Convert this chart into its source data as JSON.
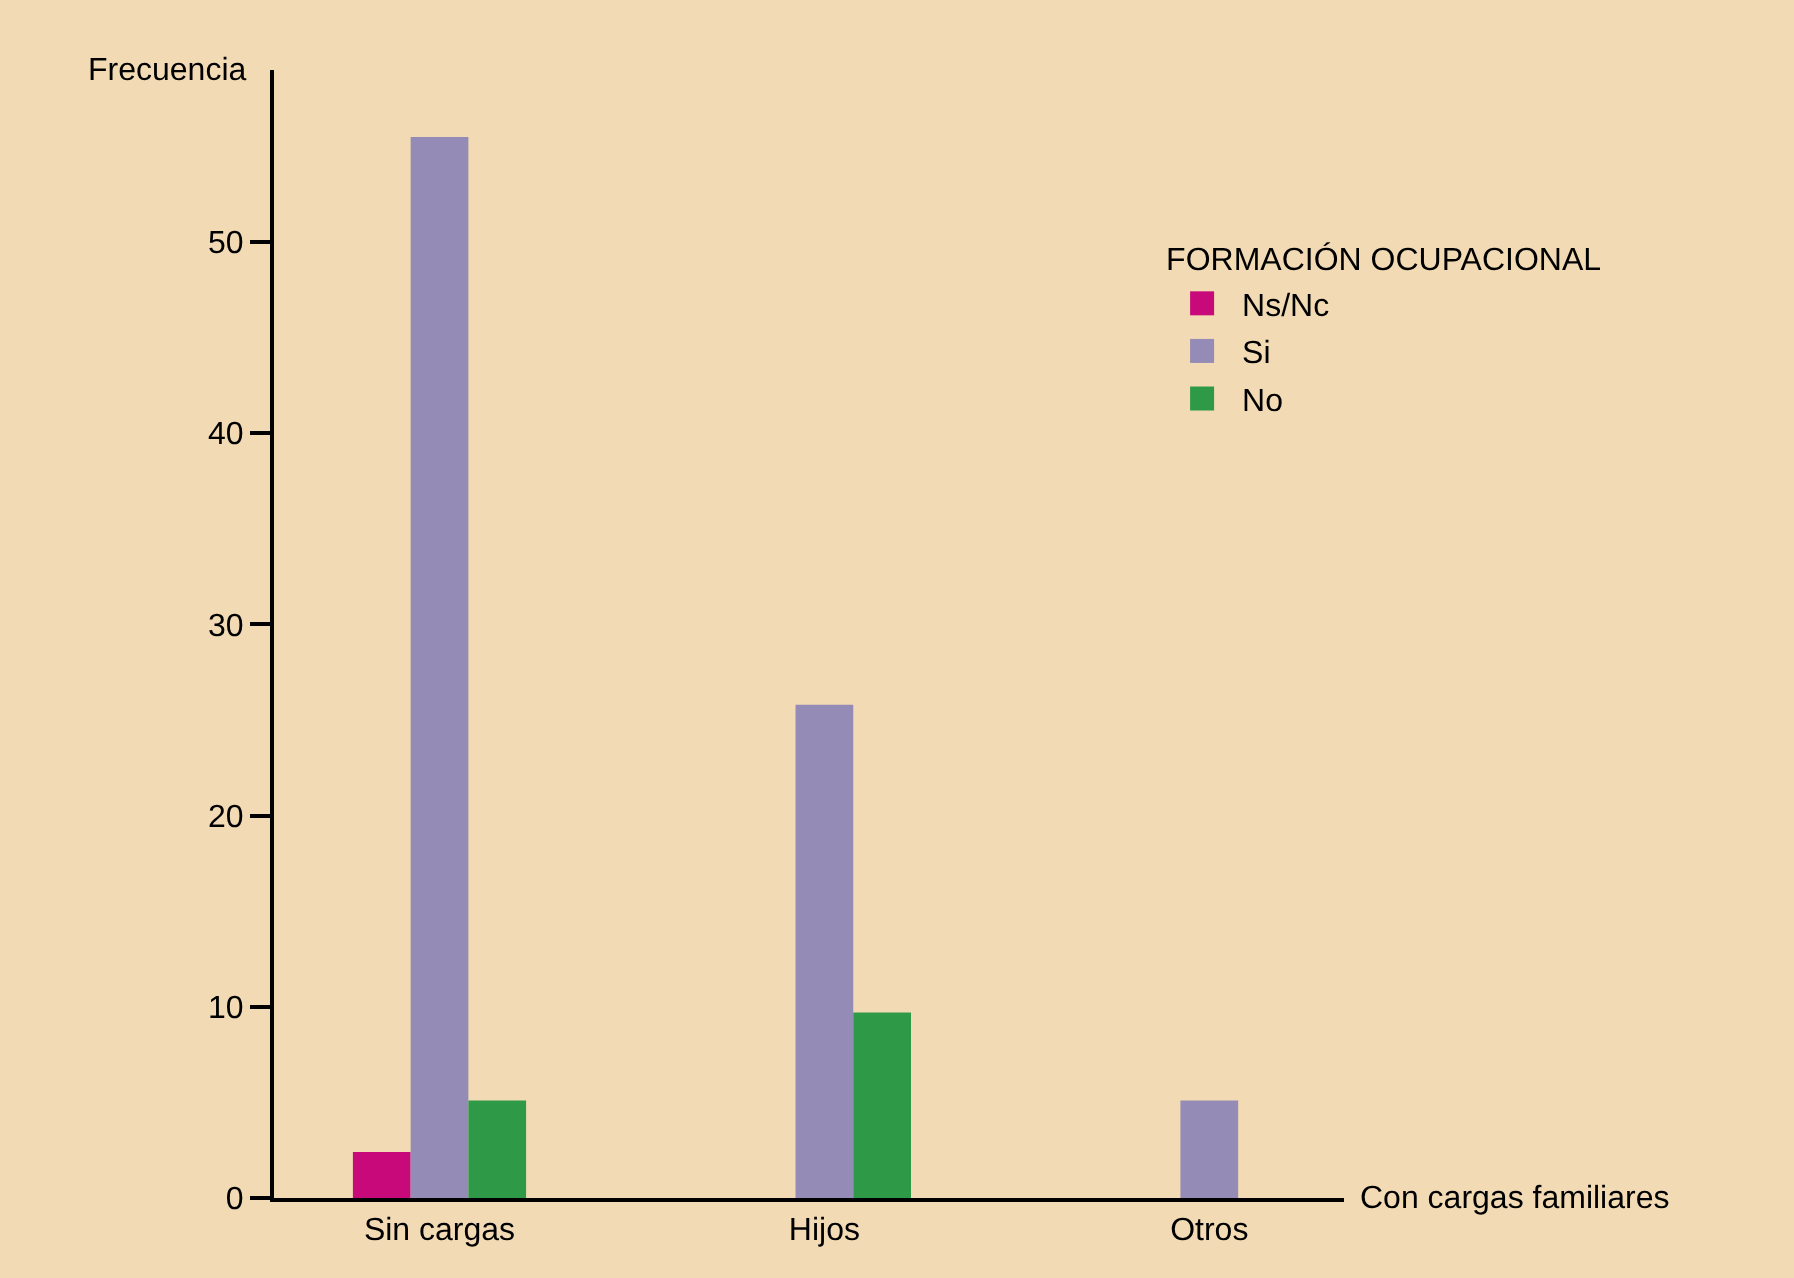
{
  "chart_data": {
    "type": "bar",
    "xlabel": "Con cargas familiares",
    "ylabel": "Frecuencia",
    "legend_title": "FORMACIÓN OCUPACIONAL",
    "categories": [
      "Sin cargas",
      "Hijos",
      "Otros"
    ],
    "series": [
      {
        "name": "Ns/Nc",
        "color": "#c8097a",
        "values": [
          2.4,
          null,
          null
        ]
      },
      {
        "name": "Si",
        "color": "#948bb6",
        "values": [
          55.5,
          25.8,
          5.1
        ]
      },
      {
        "name": "No",
        "color": "#2e9a48",
        "values": [
          5.1,
          9.7,
          null
        ]
      }
    ],
    "ylim": [
      0,
      59
    ],
    "yticks": [
      0,
      10,
      20,
      30,
      40,
      50
    ],
    "grid": false,
    "legend": "top right"
  }
}
